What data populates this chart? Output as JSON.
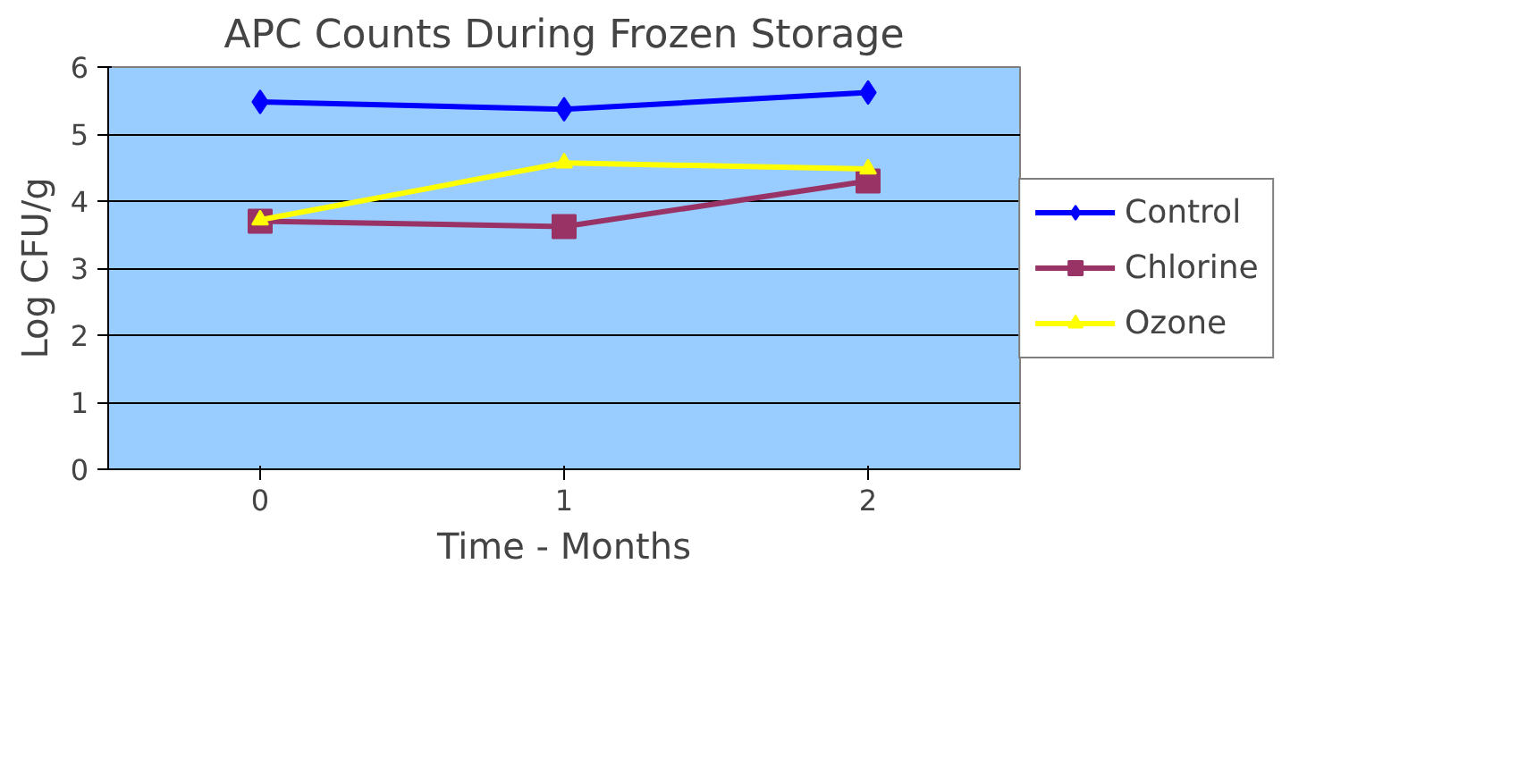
{
  "chart_data": {
    "type": "line",
    "title": "APC Counts During Frozen Storage",
    "xlabel": "Time - Months",
    "ylabel": "Log CFU/g",
    "categories": [
      "0",
      "1",
      "2"
    ],
    "series": [
      {
        "name": "Control",
        "color": "#0000ff",
        "values": [
          5.48,
          5.37,
          5.62
        ],
        "marker": "diamond"
      },
      {
        "name": "Chlorine",
        "color": "#993366",
        "values": [
          3.7,
          3.62,
          4.3
        ],
        "marker": "square"
      },
      {
        "name": "Ozone",
        "color": "#ffff00",
        "values": [
          3.72,
          4.57,
          4.48
        ],
        "marker": "triangle"
      }
    ],
    "ylim": [
      0,
      6
    ],
    "yticks": [
      0,
      1,
      2,
      3,
      4,
      5,
      6
    ],
    "grid": "y",
    "legend": "right",
    "line_style": "solid"
  }
}
